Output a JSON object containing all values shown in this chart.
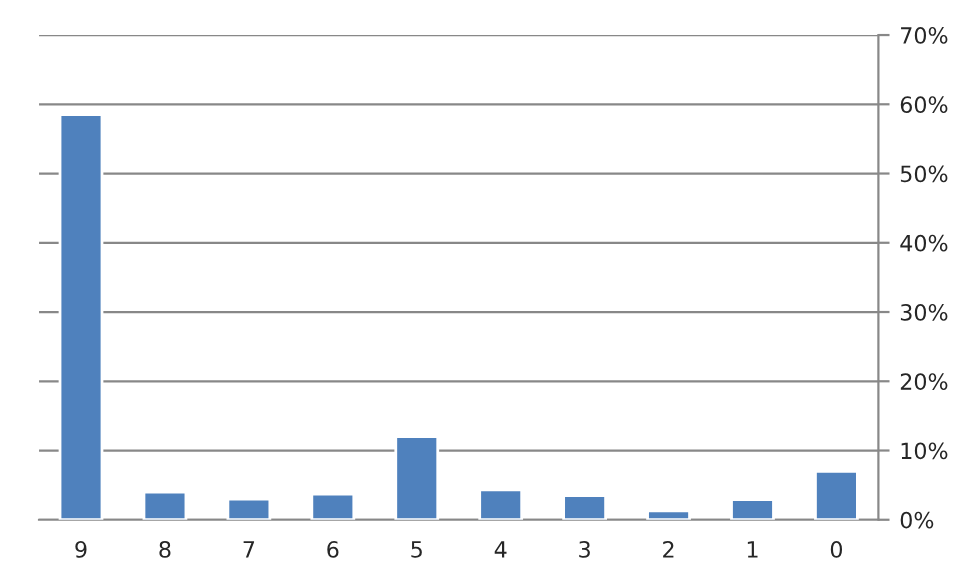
{
  "chart_data": {
    "type": "bar",
    "categories": [
      "9",
      "8",
      "7",
      "6",
      "5",
      "4",
      "3",
      "2",
      "1",
      "0"
    ],
    "values": [
      58.5,
      4.0,
      3.0,
      3.7,
      12.0,
      4.3,
      3.5,
      1.3,
      2.9,
      7.0
    ],
    "color": "#4f81bd",
    "ylim": [
      0,
      70
    ],
    "yticks": [
      {
        "value": 0,
        "label": "0%"
      },
      {
        "value": 10,
        "label": "10%"
      },
      {
        "value": 20,
        "label": "20%"
      },
      {
        "value": 30,
        "label": "30%"
      },
      {
        "value": 40,
        "label": "40%"
      },
      {
        "value": 50,
        "label": "50%"
      },
      {
        "value": 60,
        "label": "60%"
      },
      {
        "value": 70,
        "label": "70%"
      }
    ],
    "grid": "y",
    "legend": false
  }
}
